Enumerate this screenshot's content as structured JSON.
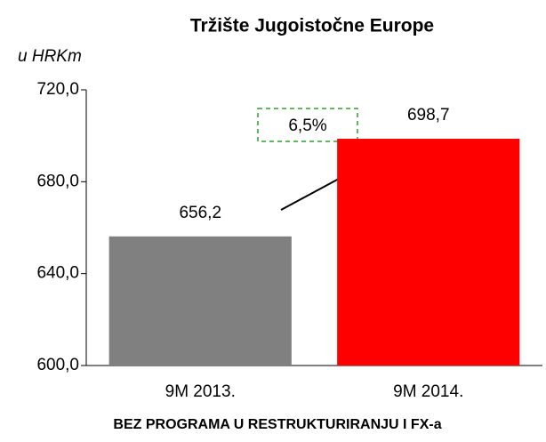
{
  "chart_data": {
    "type": "bar",
    "title": "Tržište Jugoistočne Europe",
    "subtitle": "u HRKm",
    "xlabel": "BEZ PROGRAMA U RESTRUKTURIRANJU I FX-a",
    "categories": [
      "9M 2013.",
      "9M 2014."
    ],
    "values": [
      656.2,
      698.7
    ],
    "value_labels": [
      "656,2",
      "698,7"
    ],
    "colors": [
      "#808080",
      "#ff0000"
    ],
    "annotation": "6,5%",
    "ylim": [
      600,
      720
    ],
    "yticks": [
      {
        "value": 600,
        "label": "600,0"
      },
      {
        "value": 640,
        "label": "640,0"
      },
      {
        "value": 680,
        "label": "680,0"
      },
      {
        "value": 720,
        "label": "720,0"
      }
    ],
    "grid": false
  }
}
